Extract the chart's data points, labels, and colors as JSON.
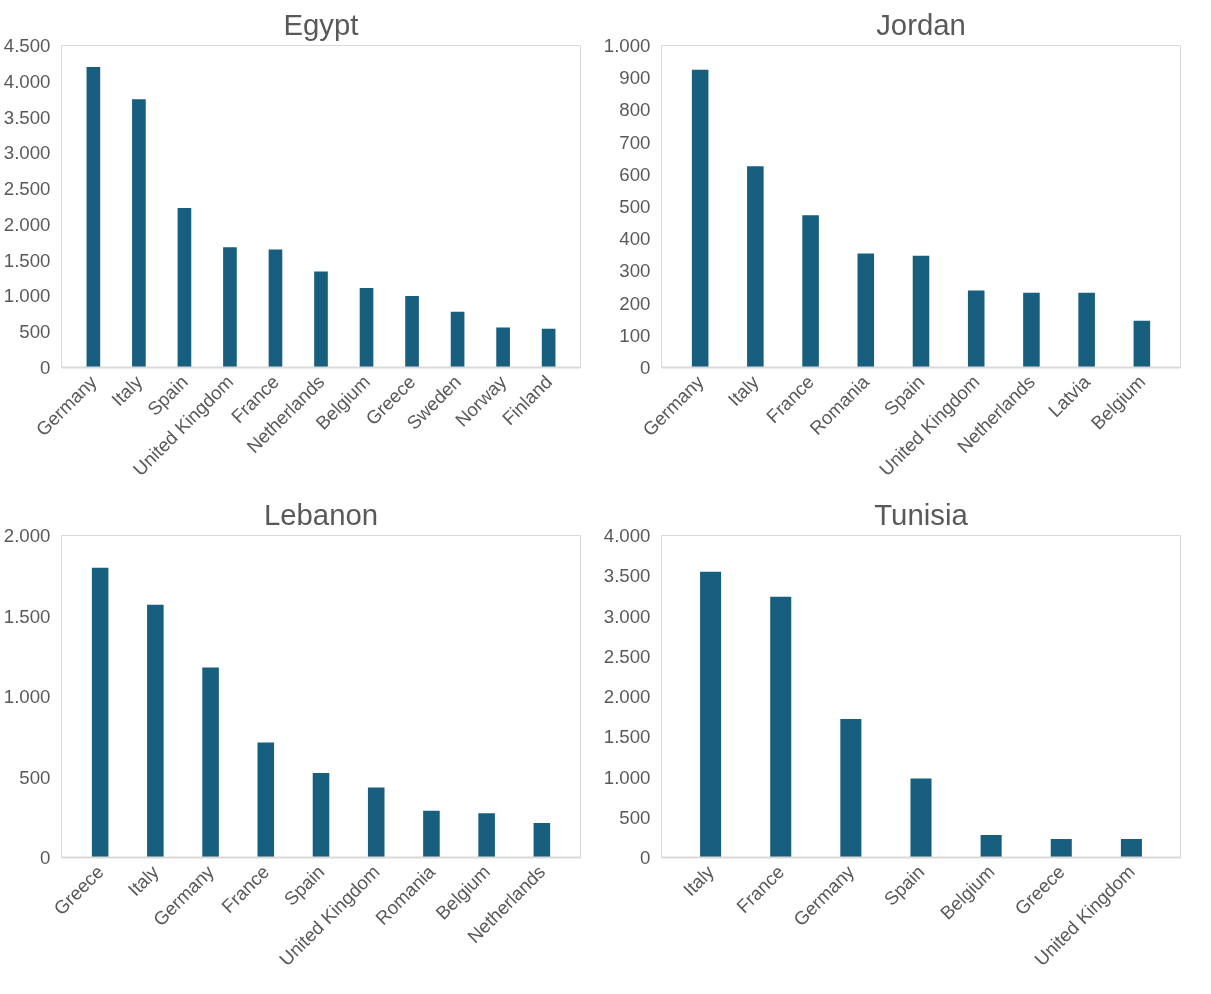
{
  "chart_data": [
    {
      "type": "bar",
      "title": "Egypt",
      "categories": [
        "Germany",
        "Italy",
        "Spain",
        "United Kingdom",
        "France",
        "Netherlands",
        "Belgium",
        "Greece",
        "Sweden",
        "Norway",
        "Finland"
      ],
      "values": [
        4200,
        3750,
        2230,
        1680,
        1650,
        1340,
        1110,
        1000,
        780,
        560,
        540
      ],
      "color": "#175e7f",
      "ylim": [
        0,
        4500
      ],
      "yticks": [
        {
          "value": 0,
          "label": "0"
        },
        {
          "value": 500,
          "label": "500"
        },
        {
          "value": 1000,
          "label": "1.000"
        },
        {
          "value": 1500,
          "label": "1.500"
        },
        {
          "value": 2000,
          "label": "2.000"
        },
        {
          "value": 2500,
          "label": "2.500"
        },
        {
          "value": 3000,
          "label": "3.000"
        },
        {
          "value": 3500,
          "label": "3.500"
        },
        {
          "value": 4000,
          "label": "4.000"
        },
        {
          "value": 4500,
          "label": "4.500"
        }
      ],
      "grid": false
    },
    {
      "type": "bar",
      "title": "Jordan",
      "categories": [
        "Germany",
        "Italy",
        "France",
        "Romania",
        "Spain",
        "United Kingdom",
        "Netherlands",
        "Latvia",
        "Belgium"
      ],
      "values": [
        925,
        625,
        473,
        354,
        347,
        239,
        232,
        232,
        145
      ],
      "color": "#175e7f",
      "ylim": [
        0,
        1000
      ],
      "yticks": [
        0,
        100,
        200,
        300,
        400,
        500,
        600,
        700,
        800,
        900,
        {
          "value": 1000,
          "label": "1.000"
        }
      ],
      "grid": false
    },
    {
      "type": "bar",
      "title": "Lebanon",
      "categories": [
        "Greece",
        "Italy",
        "Germany",
        "France",
        "Spain",
        "United Kingdom",
        "Romania",
        "Belgium",
        "Netherlands"
      ],
      "values": [
        1800,
        1570,
        1180,
        715,
        525,
        435,
        290,
        275,
        215
      ],
      "color": "#175e7f",
      "ylim": [
        0,
        2000
      ],
      "yticks": [
        0,
        500,
        {
          "value": 1000,
          "label": "1.000"
        },
        {
          "value": 1500,
          "label": "1.500"
        },
        {
          "value": 2000,
          "label": "2.000"
        }
      ],
      "grid": false
    },
    {
      "type": "bar",
      "title": "Tunisia",
      "categories": [
        "Italy",
        "France",
        "Germany",
        "Spain",
        "Belgium",
        "Greece",
        "United Kingdom"
      ],
      "values": [
        3550,
        3240,
        1720,
        980,
        280,
        230,
        230
      ],
      "color": "#175e7f",
      "ylim": [
        0,
        4000
      ],
      "yticks": [
        0,
        500,
        {
          "value": 1000,
          "label": "1.000"
        },
        {
          "value": 1500,
          "label": "1.500"
        },
        {
          "value": 2000,
          "label": "2.000"
        },
        {
          "value": 2500,
          "label": "2.500"
        },
        {
          "value": 3000,
          "label": "3.000"
        },
        {
          "value": 3500,
          "label": "3.500"
        },
        {
          "value": 4000,
          "label": "4.000"
        }
      ],
      "grid": false
    }
  ]
}
